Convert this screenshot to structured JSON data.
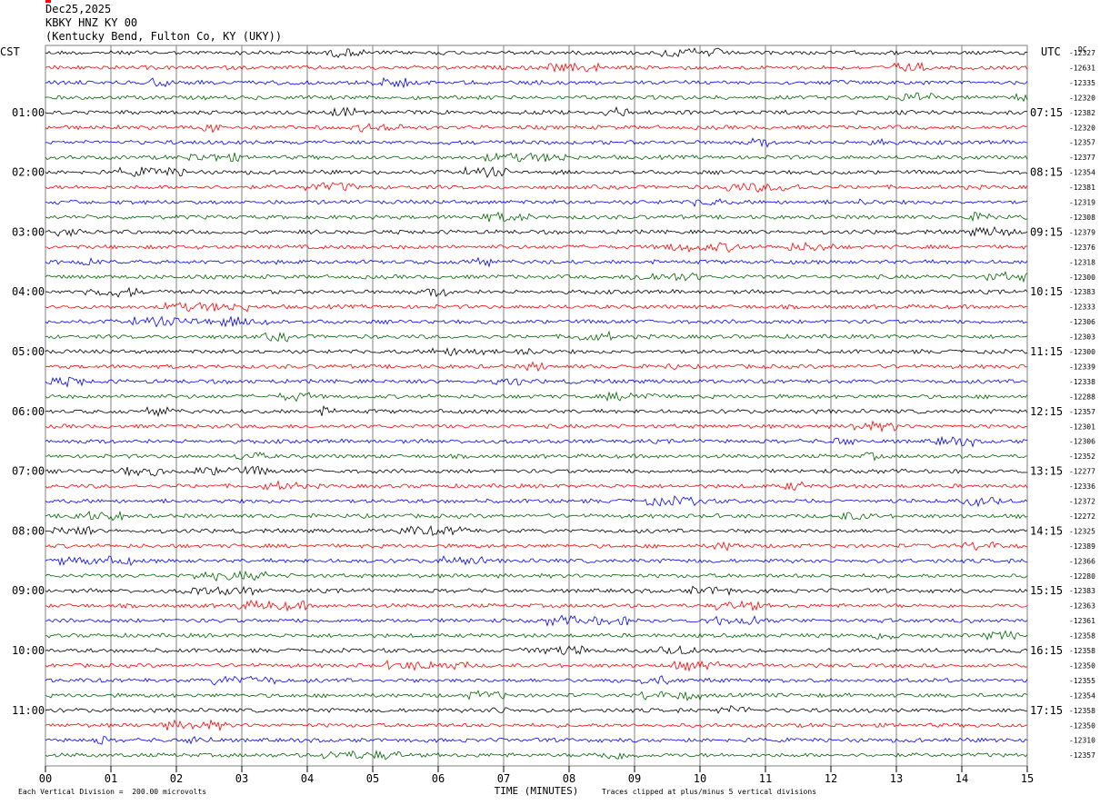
{
  "header": {
    "date": "Dec25,2025",
    "station": "KBKY HNZ KY 00",
    "location": "(Kentucky Bend, Fulton Co, KY (UKY))"
  },
  "footer": {
    "scale_note": "Each Vertical Division =  200.00 microvolts",
    "clip_note": "Traces clipped at plus/minus 5 vertical divisions"
  },
  "colors": {
    "trace_cycle": [
      "#000000",
      "#ff0000",
      "#0000ff",
      "#006400"
    ],
    "grid": "#808080"
  },
  "chart_data": {
    "type": "line",
    "title": "",
    "xlabel": "TIME (MINUTES)",
    "x_ticks": [
      "00",
      "01",
      "02",
      "03",
      "04",
      "05",
      "06",
      "07",
      "08",
      "09",
      "10",
      "11",
      "12",
      "13",
      "14",
      "15"
    ],
    "xlim": [
      0,
      15
    ],
    "grid": true,
    "left_timezone": "CST",
    "right_timezone": "UTC",
    "right_header": "DC",
    "left_hour_labels": [
      "01:00",
      "02:00",
      "03:00",
      "04:00",
      "05:00",
      "06:00",
      "07:00",
      "08:00",
      "09:00",
      "10:00",
      "11:00"
    ],
    "right_hour_labels": [
      "07:15",
      "08:15",
      "09:15",
      "10:15",
      "11:15",
      "12:15",
      "13:15",
      "14:15",
      "15:15",
      "16:15",
      "17:15"
    ],
    "dc_offsets": [
      "-12327",
      "-12631",
      "-12335",
      "-12320",
      "-12382",
      "-12320",
      "-12357",
      "-12377",
      "-12354",
      "-12381",
      "-12319",
      "-12308",
      "-12379",
      "-12376",
      "-12318",
      "-12300",
      "-12383",
      "-12333",
      "-12306",
      "-12303",
      "-12300",
      "-12339",
      "-12338",
      "-12288",
      "-12357",
      "-12301",
      "-12306",
      "-12352",
      "-12277",
      "-12336",
      "-12372",
      "-12272",
      "-12325",
      "-12389",
      "-12366",
      "-12280",
      "-12383",
      "-12363",
      "-12361",
      "-12358",
      "-12358",
      "-12350",
      "-12355",
      "-12354",
      "-12358",
      "-12350",
      "-12310",
      "-12357"
    ],
    "traces": 48,
    "minutes_per_trace": 15
  }
}
